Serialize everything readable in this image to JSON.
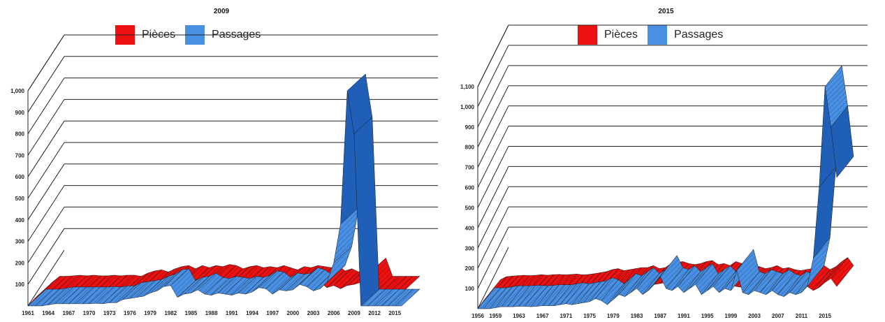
{
  "colors": {
    "pieces": "#ee1111",
    "passages": "#4a90e2",
    "passages_dark": "#1f5fb8"
  },
  "chart_data": [
    {
      "type": "area",
      "title": "2009",
      "legend": [
        "Pièces",
        "Passages"
      ],
      "legend_position": "top-center",
      "grid": true,
      "three_d": true,
      "xlim": [
        1961,
        2016
      ],
      "ylim": [
        0,
        1000
      ],
      "yticks": [
        100,
        200,
        300,
        400,
        500,
        600,
        700,
        800,
        900,
        1000
      ],
      "ytick_labels": [
        "100",
        "200",
        "300",
        "400",
        "500",
        "600",
        "700",
        "800",
        "900",
        "1,000"
      ],
      "xticks": [
        1961,
        1964,
        1967,
        1970,
        1973,
        1976,
        1979,
        1982,
        1985,
        1988,
        1991,
        1994,
        1997,
        2000,
        2003,
        2006,
        2009,
        2012,
        2015
      ],
      "series": [
        {
          "name": "Pièces",
          "x": [
            1961,
            1962,
            1963,
            1964,
            1965,
            1966,
            1967,
            1968,
            1969,
            1970,
            1971,
            1972,
            1973,
            1974,
            1975,
            1976,
            1977,
            1978,
            1979,
            1980,
            1981,
            1982,
            1983,
            1984,
            1985,
            1986,
            1987,
            1988,
            1989,
            1990,
            1991,
            1992,
            1993,
            1994,
            1995,
            1996,
            1997,
            1998,
            1999,
            2000,
            2001,
            2002,
            2003,
            2004,
            2005,
            2006,
            2007,
            2008,
            2009,
            2010,
            2011,
            2012,
            2013,
            2014,
            2015,
            2016
          ],
          "values": [
            0,
            35,
            60,
            60,
            62,
            65,
            62,
            65,
            62,
            62,
            65,
            62,
            65,
            65,
            60,
            75,
            85,
            90,
            80,
            95,
            105,
            110,
            95,
            110,
            100,
            110,
            105,
            115,
            110,
            95,
            105,
            110,
            100,
            105,
            100,
            110,
            100,
            90,
            105,
            100,
            110,
            105,
            100,
            110,
            85,
            95,
            80,
            95,
            100,
            110,
            145,
            60,
            60,
            60,
            60,
            60
          ]
        },
        {
          "name": "Passages",
          "x": [
            1961,
            1962,
            1963,
            1964,
            1965,
            1966,
            1967,
            1968,
            1969,
            1970,
            1971,
            1972,
            1973,
            1974,
            1975,
            1976,
            1977,
            1978,
            1979,
            1980,
            1981,
            1982,
            1983,
            1984,
            1985,
            1986,
            1987,
            1988,
            1989,
            1990,
            1991,
            1992,
            1993,
            1994,
            1995,
            1996,
            1997,
            1998,
            1999,
            2000,
            2001,
            2002,
            2003,
            2004,
            2005,
            2006,
            2007,
            2008,
            2009,
            2010,
            2011,
            2012,
            2013,
            2014,
            2015,
            2016
          ],
          "values": [
            0,
            0,
            0,
            5,
            10,
            10,
            10,
            10,
            10,
            10,
            12,
            10,
            15,
            15,
            30,
            35,
            40,
            45,
            60,
            70,
            90,
            95,
            40,
            55,
            60,
            75,
            55,
            50,
            60,
            55,
            50,
            60,
            55,
            65,
            85,
            80,
            55,
            75,
            70,
            75,
            100,
            90,
            70,
            80,
            110,
            200,
            380,
            1000,
            800,
            0,
            0,
            0,
            0,
            0,
            0,
            0
          ]
        }
      ]
    },
    {
      "type": "area",
      "title": "2015",
      "legend": [
        "Pièces",
        "Passages"
      ],
      "legend_position": "top-center",
      "grid": true,
      "three_d": true,
      "xlim": [
        1956,
        2017
      ],
      "ylim": [
        0,
        1100
      ],
      "yticks": [
        100,
        200,
        300,
        400,
        500,
        600,
        700,
        800,
        900,
        1000,
        1100
      ],
      "ytick_labels": [
        "100",
        "200",
        "300",
        "400",
        "500",
        "600",
        "700",
        "800",
        "900",
        "1,000",
        "1,100"
      ],
      "xticks": [
        1956,
        1959,
        1963,
        1967,
        1971,
        1975,
        1979,
        1983,
        1987,
        1991,
        1995,
        1999,
        2003,
        2007,
        2011,
        2015
      ],
      "series": [
        {
          "name": "Pièces",
          "x": [
            1956,
            1957,
            1958,
            1959,
            1960,
            1961,
            1962,
            1963,
            1964,
            1965,
            1966,
            1967,
            1968,
            1969,
            1970,
            1971,
            1972,
            1973,
            1974,
            1975,
            1976,
            1977,
            1978,
            1979,
            1980,
            1981,
            1982,
            1983,
            1984,
            1985,
            1986,
            1987,
            1988,
            1989,
            1990,
            1991,
            1992,
            1993,
            1994,
            1995,
            1996,
            1997,
            1998,
            1999,
            2000,
            2001,
            2002,
            2003,
            2004,
            2005,
            2006,
            2007,
            2008,
            2009,
            2010,
            2011,
            2012,
            2013,
            2014,
            2015,
            2016,
            2017
          ],
          "values": [
            0,
            40,
            55,
            58,
            60,
            62,
            60,
            62,
            65,
            62,
            65,
            66,
            64,
            66,
            68,
            64,
            66,
            70,
            75,
            80,
            90,
            95,
            85,
            90,
            95,
            100,
            100,
            110,
            95,
            100,
            120,
            125,
            130,
            120,
            115,
            120,
            130,
            135,
            115,
            120,
            110,
            130,
            120,
            115,
            110,
            105,
            95,
            100,
            110,
            95,
            100,
            90,
            85,
            90,
            95,
            100,
            110,
            90,
            105,
            130,
            150,
            110
          ]
        },
        {
          "name": "Passages",
          "x": [
            1956,
            1957,
            1958,
            1959,
            1960,
            1961,
            1962,
            1963,
            1964,
            1965,
            1966,
            1967,
            1968,
            1969,
            1970,
            1971,
            1972,
            1973,
            1974,
            1975,
            1976,
            1977,
            1978,
            1979,
            1980,
            1981,
            1982,
            1983,
            1984,
            1985,
            1986,
            1987,
            1988,
            1989,
            1990,
            1991,
            1992,
            1993,
            1994,
            1995,
            1996,
            1997,
            1998,
            1999,
            2000,
            2001,
            2002,
            2003,
            2004,
            2005,
            2006,
            2007,
            2008,
            2009,
            2010,
            2011,
            2012,
            2013,
            2014,
            2015,
            2016,
            2017
          ],
          "values": [
            0,
            0,
            0,
            5,
            10,
            10,
            10,
            12,
            12,
            10,
            12,
            15,
            15,
            15,
            20,
            25,
            20,
            25,
            30,
            35,
            50,
            40,
            20,
            45,
            70,
            60,
            80,
            100,
            70,
            90,
            120,
            160,
            100,
            90,
            110,
            80,
            100,
            120,
            70,
            90,
            110,
            80,
            100,
            90,
            190,
            80,
            70,
            90,
            80,
            70,
            90,
            70,
            60,
            80,
            70,
            80,
            110,
            250,
            600,
            1100,
            900,
            650
          ]
        }
      ]
    }
  ]
}
